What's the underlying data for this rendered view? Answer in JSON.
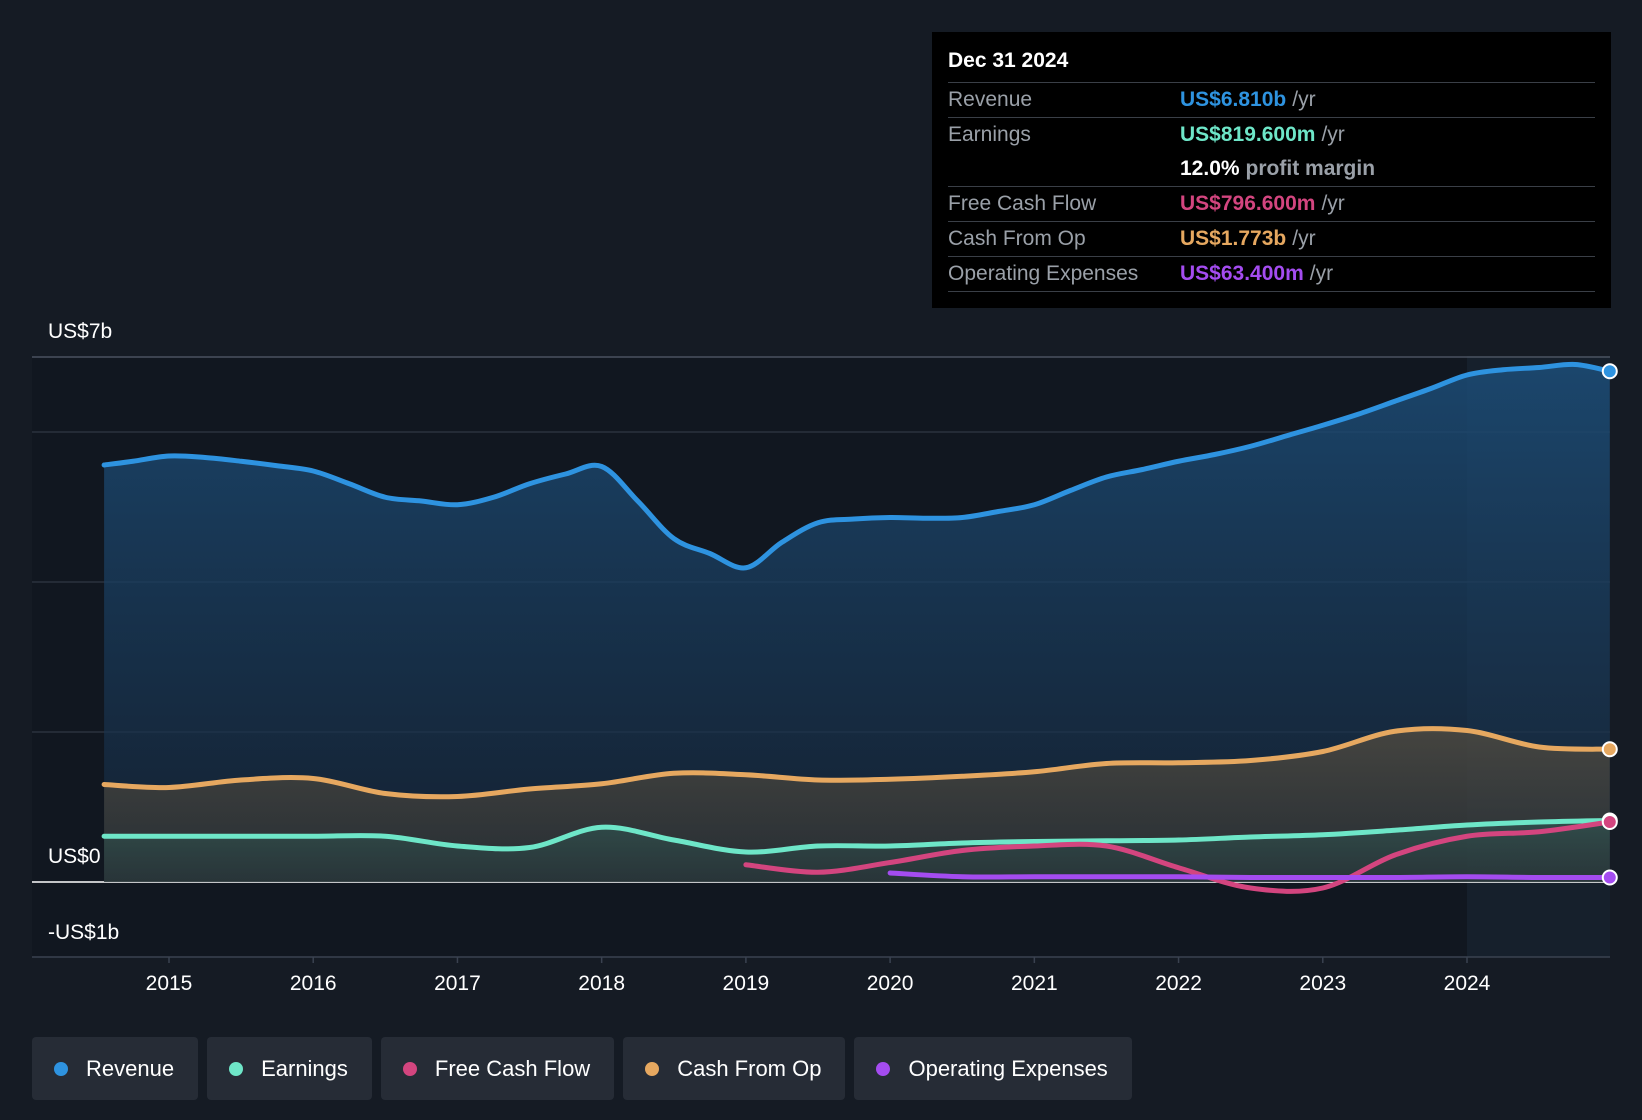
{
  "tooltip": {
    "date": "Dec 31 2024",
    "rows": [
      {
        "label": "Revenue",
        "value": "US$6.810b",
        "unit": "/yr",
        "color": "#2e93e0"
      },
      {
        "label": "Earnings",
        "value": "US$819.600m",
        "unit": "/yr",
        "color": "#6ee6c8"
      },
      {
        "label": "",
        "value": "12.0%",
        "unit": "profit margin",
        "color": "#ffffff"
      },
      {
        "label": "Free Cash Flow",
        "value": "US$796.600m",
        "unit": "/yr",
        "color": "#d3457f"
      },
      {
        "label": "Cash From Op",
        "value": "US$1.773b",
        "unit": "/yr",
        "color": "#e6a860"
      },
      {
        "label": "Operating Expenses",
        "value": "US$63.400m",
        "unit": "/yr",
        "color": "#a44cf0"
      }
    ]
  },
  "legend": [
    {
      "label": "Revenue",
      "color": "#2e93e0"
    },
    {
      "label": "Earnings",
      "color": "#6ee6c8"
    },
    {
      "label": "Free Cash Flow",
      "color": "#d3457f"
    },
    {
      "label": "Cash From Op",
      "color": "#e6a860"
    },
    {
      "label": "Operating Expenses",
      "color": "#a44cf0"
    }
  ],
  "chart_data": {
    "type": "area",
    "title": "",
    "y_top_label": "US$7b",
    "y_zero_label": "US$0",
    "y_bottom_label": "-US$1b",
    "ylim": [
      -1,
      7
    ],
    "xlim": [
      2014.55,
      2024.99
    ],
    "x_ticks": [
      2015,
      2016,
      2017,
      2018,
      2019,
      2020,
      2021,
      2022,
      2023,
      2024
    ],
    "x_tick_labels": [
      "2015",
      "2016",
      "2017",
      "2018",
      "2019",
      "2020",
      "2021",
      "2022",
      "2023",
      "2024"
    ],
    "series": [
      {
        "name": "Revenue",
        "color": "#2e93e0",
        "x": [
          2014.55,
          2014.75,
          2015.0,
          2015.25,
          2015.5,
          2015.75,
          2016.0,
          2016.25,
          2016.5,
          2016.75,
          2017.0,
          2017.25,
          2017.5,
          2017.75,
          2018.0,
          2018.25,
          2018.5,
          2018.75,
          2019.0,
          2019.25,
          2019.5,
          2019.75,
          2020.0,
          2020.25,
          2020.5,
          2020.75,
          2021.0,
          2021.25,
          2021.5,
          2021.75,
          2022.0,
          2022.25,
          2022.5,
          2022.75,
          2023.0,
          2023.25,
          2023.5,
          2023.75,
          2024.0,
          2024.25,
          2024.5,
          2024.75,
          2024.99
        ],
        "values": [
          5.56,
          5.61,
          5.68,
          5.66,
          5.61,
          5.55,
          5.48,
          5.31,
          5.13,
          5.08,
          5.03,
          5.13,
          5.31,
          5.44,
          5.54,
          5.08,
          4.58,
          4.38,
          4.19,
          4.53,
          4.79,
          4.84,
          4.86,
          4.85,
          4.86,
          4.94,
          5.03,
          5.22,
          5.4,
          5.5,
          5.61,
          5.7,
          5.81,
          5.95,
          6.09,
          6.24,
          6.41,
          6.58,
          6.76,
          6.83,
          6.86,
          6.9,
          6.81
        ]
      },
      {
        "name": "Cash From Op",
        "color": "#e6a860",
        "x": [
          2014.55,
          2015.0,
          2015.5,
          2016.0,
          2016.5,
          2017.0,
          2017.5,
          2018.0,
          2018.5,
          2019.0,
          2019.5,
          2020.0,
          2020.5,
          2021.0,
          2021.5,
          2022.0,
          2022.5,
          2023.0,
          2023.5,
          2024.0,
          2024.5,
          2024.99
        ],
        "values": [
          1.3,
          1.26,
          1.36,
          1.38,
          1.18,
          1.14,
          1.24,
          1.31,
          1.45,
          1.43,
          1.36,
          1.37,
          1.41,
          1.47,
          1.58,
          1.59,
          1.62,
          1.74,
          2.01,
          2.02,
          1.8,
          1.77
        ]
      },
      {
        "name": "Earnings",
        "color": "#6ee6c8",
        "x": [
          2014.55,
          2015.0,
          2015.5,
          2016.0,
          2016.5,
          2017.0,
          2017.5,
          2018.0,
          2018.5,
          2019.0,
          2019.5,
          2020.0,
          2020.5,
          2021.0,
          2021.5,
          2022.0,
          2022.5,
          2023.0,
          2023.5,
          2024.0,
          2024.5,
          2024.99
        ],
        "values": [
          0.61,
          0.61,
          0.61,
          0.61,
          0.61,
          0.48,
          0.46,
          0.73,
          0.56,
          0.4,
          0.48,
          0.48,
          0.52,
          0.54,
          0.55,
          0.56,
          0.6,
          0.63,
          0.69,
          0.76,
          0.8,
          0.82
        ]
      },
      {
        "name": "Free Cash Flow",
        "color": "#d3457f",
        "x": [
          2019.0,
          2019.5,
          2020.0,
          2020.5,
          2021.0,
          2021.5,
          2022.0,
          2022.5,
          2023.0,
          2023.5,
          2024.0,
          2024.5,
          2024.99
        ],
        "values": [
          0.23,
          0.13,
          0.26,
          0.42,
          0.48,
          0.48,
          0.19,
          -0.08,
          -0.08,
          0.36,
          0.61,
          0.67,
          0.8
        ]
      },
      {
        "name": "Operating Expenses",
        "color": "#a44cf0",
        "x": [
          2020.0,
          2020.5,
          2021.0,
          2021.5,
          2022.0,
          2022.5,
          2023.0,
          2023.5,
          2024.0,
          2024.5,
          2024.99
        ],
        "values": [
          0.12,
          0.07,
          0.07,
          0.07,
          0.07,
          0.06,
          0.06,
          0.06,
          0.07,
          0.06,
          0.06
        ]
      }
    ]
  }
}
